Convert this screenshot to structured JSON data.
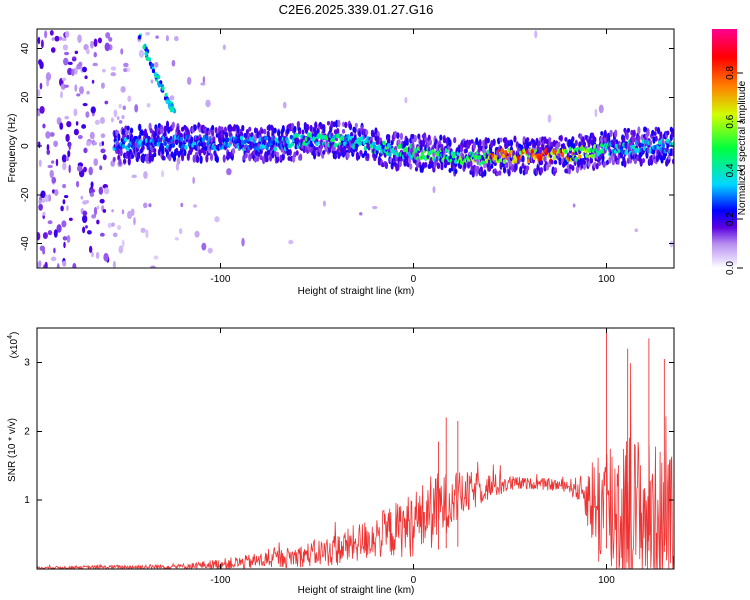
{
  "title": "C2E6.2025.339.01.27.G16",
  "chart_data": [
    {
      "type": "heatmap",
      "name": "spectrogram",
      "xlabel": "Height of straight line (km)",
      "ylabel": "Frequency (Hz)",
      "xlim": [
        -195,
        135
      ],
      "ylim": [
        -50,
        48
      ],
      "xticks": [
        -100,
        0,
        100
      ],
      "yticks": [
        -40,
        -20,
        0,
        20,
        40
      ],
      "colorbar": {
        "label": "Normalized spectral amplitude",
        "range": [
          0,
          0.98
        ],
        "ticks": [
          0.0,
          0.2,
          0.4,
          0.6,
          0.8
        ],
        "colors": [
          "#ffffff",
          "#b890f0",
          "#5a00e0",
          "#0000ff",
          "#00d8ff",
          "#00ff40",
          "#d0ff00",
          "#ff8000",
          "#ff0000",
          "#ff0090"
        ]
      },
      "ridge": [
        {
          "x": -155,
          "y": 0,
          "amp": 0.35
        },
        {
          "x": -130,
          "y": 2,
          "amp": 0.35
        },
        {
          "x": -100,
          "y": 1,
          "amp": 0.35
        },
        {
          "x": -70,
          "y": 1,
          "amp": 0.4
        },
        {
          "x": -50,
          "y": 3,
          "amp": 0.5
        },
        {
          "x": -30,
          "y": 2,
          "amp": 0.45
        },
        {
          "x": -10,
          "y": -2,
          "amp": 0.55
        },
        {
          "x": 10,
          "y": -3,
          "amp": 0.55
        },
        {
          "x": 30,
          "y": -5,
          "amp": 0.65
        },
        {
          "x": 50,
          "y": -4,
          "amp": 0.9
        },
        {
          "x": 70,
          "y": -4,
          "amp": 0.9
        },
        {
          "x": 85,
          "y": -3,
          "amp": 0.75
        },
        {
          "x": 100,
          "y": -1,
          "amp": 0.45
        },
        {
          "x": 120,
          "y": 0,
          "amp": 0.4
        },
        {
          "x": 135,
          "y": 0,
          "amp": 0.4
        }
      ],
      "streak": [
        {
          "x": -142,
          "y": 46
        },
        {
          "x": -135,
          "y": 32
        },
        {
          "x": -128,
          "y": 20
        },
        {
          "x": -124,
          "y": 14
        }
      ]
    },
    {
      "type": "line",
      "name": "snr",
      "xlabel": "Height of straight line (km)",
      "ylabel": "SNR (10 * v/v)",
      "scale_label": "(x10",
      "scale_exp": "4",
      "scale_close": ")",
      "xlim": [
        -195,
        135
      ],
      "ylim": [
        0,
        3.5
      ],
      "xticks": [
        -100,
        0,
        100
      ],
      "yticks": [
        1,
        2,
        3
      ],
      "color": "#ee3333",
      "envelope": [
        {
          "x": -195,
          "base": 0.02,
          "amp": 0.02
        },
        {
          "x": -120,
          "base": 0.04,
          "amp": 0.05
        },
        {
          "x": -90,
          "base": 0.1,
          "amp": 0.12
        },
        {
          "x": -60,
          "base": 0.2,
          "amp": 0.2
        },
        {
          "x": -40,
          "base": 0.3,
          "amp": 0.3
        },
        {
          "x": -20,
          "base": 0.5,
          "amp": 0.4
        },
        {
          "x": 0,
          "base": 0.7,
          "amp": 0.6
        },
        {
          "x": 10,
          "base": 0.9,
          "amp": 0.7
        },
        {
          "x": 20,
          "base": 1.05,
          "amp": 0.5
        },
        {
          "x": 35,
          "base": 1.2,
          "amp": 0.3
        },
        {
          "x": 50,
          "base": 1.25,
          "amp": 0.15
        },
        {
          "x": 60,
          "base": 1.25,
          "amp": 0.1
        },
        {
          "x": 80,
          "base": 1.22,
          "amp": 0.12
        },
        {
          "x": 88,
          "base": 1.15,
          "amp": 0.3
        },
        {
          "x": 95,
          "base": 1.0,
          "amp": 1.1
        },
        {
          "x": 105,
          "base": 1.0,
          "amp": 1.6
        },
        {
          "x": 120,
          "base": 0.9,
          "amp": 1.4
        },
        {
          "x": 135,
          "base": 0.8,
          "amp": 1.2
        }
      ],
      "peaks": [
        {
          "x": 100,
          "y": 3.45
        },
        {
          "x": 111,
          "y": 3.2
        },
        {
          "x": 122,
          "y": 3.35
        },
        {
          "x": 130,
          "y": 3.05
        },
        {
          "x": 17,
          "y": 2.2
        },
        {
          "x": 23,
          "y": 2.15
        },
        {
          "x": 13,
          "y": 1.85
        }
      ]
    }
  ]
}
